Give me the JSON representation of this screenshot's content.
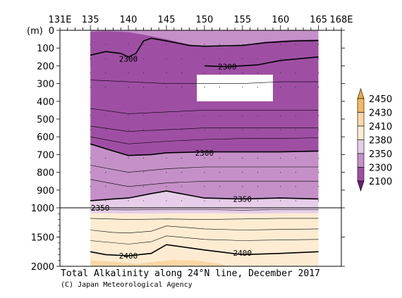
{
  "chart_data": {
    "type": "heatmap",
    "title": "Total Alkalinity along 24°N line, December 2017",
    "credit": "(C) Japan Meteorological Agency",
    "x_axis": {
      "range": [
        131,
        168
      ],
      "tick_labels": [
        {
          "value": 131,
          "label": "131E"
        },
        {
          "value": 135,
          "label": "135"
        },
        {
          "value": 140,
          "label": "140"
        },
        {
          "value": 145,
          "label": "145"
        },
        {
          "value": 150,
          "label": "150"
        },
        {
          "value": 155,
          "label": "155"
        },
        {
          "value": 160,
          "label": "160"
        },
        {
          "value": 165,
          "label": "165"
        },
        {
          "value": 168,
          "label": "168E"
        }
      ]
    },
    "y_axis": {
      "unit_label": "(m)",
      "upper_range": [
        0,
        1000
      ],
      "lower_range": [
        1000,
        2000
      ],
      "tick_labels": [
        {
          "value": 0,
          "label": "0"
        },
        {
          "value": 100,
          "label": "100"
        },
        {
          "value": 200,
          "label": "200"
        },
        {
          "value": 300,
          "label": "300"
        },
        {
          "value": 400,
          "label": "400"
        },
        {
          "value": 500,
          "label": "500"
        },
        {
          "value": 600,
          "label": "600"
        },
        {
          "value": 700,
          "label": "700"
        },
        {
          "value": 800,
          "label": "800"
        },
        {
          "value": 900,
          "label": "900"
        },
        {
          "value": 1000,
          "label": "1000"
        },
        {
          "value": 1500,
          "label": "1500"
        },
        {
          "value": 2000,
          "label": "2000"
        }
      ]
    },
    "colorbar": {
      "levels": [
        {
          "label": "2100",
          "color": "#6e1a78"
        },
        {
          "label": "2300",
          "color": "#9e4fa3"
        },
        {
          "label": "2350",
          "color": "#c590c8"
        },
        {
          "label": "2380",
          "color": "#e6cde8"
        },
        {
          "label": "2410",
          "color": "#fdecd2"
        },
        {
          "label": "2430",
          "color": "#fad7a4"
        },
        {
          "label": "2450",
          "color": "#f6b860"
        }
      ],
      "top_color": "#f0a840",
      "bottom_color": "#6e1a78"
    },
    "bands": [
      {
        "value_class": "2300-2350",
        "color": "#c590c8",
        "top": [
          [
            135,
            0
          ],
          [
            140,
            0
          ],
          [
            145,
            0
          ],
          [
            150,
            0
          ],
          [
            155,
            0
          ],
          [
            160,
            0
          ],
          [
            165,
            0
          ]
        ],
        "bottom": [
          [
            135,
            200
          ],
          [
            140,
            200
          ],
          [
            145,
            200
          ],
          [
            150,
            200
          ],
          [
            155,
            200
          ],
          [
            160,
            200
          ],
          [
            165,
            200
          ]
        ]
      },
      {
        "value_class": "2100-2300",
        "color": "#9e4fa3",
        "top": [
          [
            135,
            8
          ],
          [
            137,
            5
          ],
          [
            140,
            10
          ],
          [
            142,
            25
          ],
          [
            145,
            50
          ],
          [
            148,
            80
          ],
          [
            150,
            92
          ],
          [
            153,
            92
          ],
          [
            155,
            86
          ],
          [
            158,
            65
          ],
          [
            161,
            55
          ],
          [
            165,
            52
          ]
        ],
        "bottom": [
          [
            135,
            640
          ],
          [
            138,
            680
          ],
          [
            140,
            705
          ],
          [
            143,
            700
          ],
          [
            145,
            690
          ],
          [
            150,
            685
          ],
          [
            155,
            685
          ],
          [
            160,
            685
          ],
          [
            165,
            680
          ]
        ]
      },
      {
        "value_class": "2300-2350",
        "color": "#c590c8",
        "top": [
          [
            135,
            640
          ],
          [
            138,
            680
          ],
          [
            140,
            705
          ],
          [
            143,
            700
          ],
          [
            145,
            690
          ],
          [
            150,
            685
          ],
          [
            155,
            685
          ],
          [
            160,
            685
          ],
          [
            165,
            680
          ]
        ],
        "bottom": [
          [
            135,
            960
          ],
          [
            138,
            950
          ],
          [
            140,
            945
          ],
          [
            143,
            920
          ],
          [
            145,
            905
          ],
          [
            150,
            945
          ],
          [
            155,
            950
          ],
          [
            160,
            945
          ],
          [
            165,
            950
          ]
        ]
      },
      {
        "value_class": "2350-2380",
        "color": "#e6cde8",
        "top": [
          [
            135,
            960
          ],
          [
            138,
            950
          ],
          [
            140,
            945
          ],
          [
            143,
            920
          ],
          [
            145,
            905
          ],
          [
            150,
            945
          ],
          [
            155,
            950
          ],
          [
            160,
            945
          ],
          [
            165,
            950
          ]
        ],
        "bottom": [
          [
            135,
            1090
          ],
          [
            140,
            1100
          ],
          [
            145,
            1095
          ],
          [
            150,
            1090
          ],
          [
            155,
            1100
          ],
          [
            160,
            1095
          ],
          [
            165,
            1090
          ]
        ]
      },
      {
        "value_class": "2380-2410",
        "color": "#fdecd2",
        "top": [
          [
            135,
            1090
          ],
          [
            140,
            1100
          ],
          [
            145,
            1095
          ],
          [
            150,
            1090
          ],
          [
            155,
            1100
          ],
          [
            160,
            1095
          ],
          [
            165,
            1090
          ]
        ],
        "bottom": [
          [
            135,
            2000
          ],
          [
            140,
            2000
          ],
          [
            145,
            2000
          ],
          [
            150,
            2000
          ],
          [
            155,
            2000
          ],
          [
            160,
            2000
          ],
          [
            165,
            2000
          ]
        ]
      },
      {
        "value_class": "2410-2430",
        "color": "#fad7a4",
        "top": [
          [
            135,
            1900
          ],
          [
            138,
            1920
          ],
          [
            141,
            1960
          ],
          [
            143,
            1930
          ],
          [
            146,
            1890
          ],
          [
            149,
            1900
          ],
          [
            152,
            1960
          ],
          [
            153,
            2000
          ]
        ],
        "bottom": [
          [
            135,
            2000
          ],
          [
            153,
            2000
          ]
        ]
      }
    ],
    "contour_lines": [
      {
        "value": "2300",
        "bold": true,
        "label_at": [
          140.0,
          160
        ],
        "points": [
          [
            135,
            140
          ],
          [
            137,
            120
          ],
          [
            139,
            130
          ],
          [
            140,
            150
          ],
          [
            141,
            130
          ],
          [
            142,
            60
          ],
          [
            143,
            45
          ],
          [
            145,
            60
          ],
          [
            148,
            85
          ],
          [
            150,
            90
          ],
          [
            155,
            85
          ],
          [
            158,
            70
          ],
          [
            162,
            60
          ],
          [
            165,
            58
          ]
        ]
      },
      {
        "value": "2300",
        "bold": true,
        "label_at": [
          153.0,
          205
        ],
        "points": [
          [
            150,
            200
          ],
          [
            153,
            205
          ],
          [
            157,
            195
          ],
          [
            160,
            170
          ],
          [
            165,
            150
          ]
        ]
      },
      {
        "value": "2300",
        "bold": true,
        "label_at": [
          150.0,
          690
        ],
        "points": [
          [
            135,
            640
          ],
          [
            138,
            680
          ],
          [
            140,
            705
          ],
          [
            143,
            700
          ],
          [
            145,
            690
          ],
          [
            150,
            685
          ],
          [
            155,
            685
          ],
          [
            160,
            685
          ],
          [
            165,
            680
          ]
        ]
      },
      {
        "value": "2350",
        "bold": true,
        "label_at": [
          136.3,
          1000
        ],
        "points": [
          [
            135,
            960
          ],
          [
            138,
            950
          ],
          [
            140,
            945
          ],
          [
            143,
            920
          ],
          [
            145,
            905
          ],
          [
            150,
            945
          ],
          [
            155,
            950
          ],
          [
            160,
            945
          ],
          [
            165,
            950
          ]
        ]
      },
      {
        "value": "2350",
        "bold": true,
        "label_at": [
          155.0,
          950
        ],
        "points": []
      },
      {
        "value": "2400",
        "bold": true,
        "label_at": [
          140.0,
          1820
        ],
        "points": [
          [
            135,
            1750
          ],
          [
            137,
            1800
          ],
          [
            140,
            1820
          ],
          [
            143,
            1780
          ],
          [
            145,
            1630
          ],
          [
            150,
            1720
          ],
          [
            155,
            1800
          ],
          [
            160,
            1780
          ],
          [
            165,
            1750
          ]
        ]
      },
      {
        "value": "2400",
        "bold": true,
        "label_at": [
          155.0,
          1770
        ],
        "points": []
      },
      {
        "value": "",
        "bold": false,
        "points": [
          [
            135,
            280
          ],
          [
            140,
            290
          ],
          [
            145,
            300
          ],
          [
            150,
            300
          ],
          [
            155,
            300
          ],
          [
            160,
            290
          ],
          [
            165,
            290
          ]
        ]
      },
      {
        "value": "",
        "bold": false,
        "points": [
          [
            135,
            440
          ],
          [
            140,
            470
          ],
          [
            145,
            460
          ],
          [
            150,
            450
          ],
          [
            155,
            450
          ],
          [
            160,
            450
          ],
          [
            165,
            450
          ]
        ]
      },
      {
        "value": "",
        "bold": false,
        "points": [
          [
            135,
            540
          ],
          [
            140,
            570
          ],
          [
            145,
            560
          ],
          [
            150,
            550
          ],
          [
            155,
            550
          ],
          [
            160,
            550
          ],
          [
            165,
            550
          ]
        ]
      },
      {
        "value": "",
        "bold": false,
        "points": [
          [
            135,
            600
          ],
          [
            140,
            640
          ],
          [
            145,
            625
          ],
          [
            150,
            615
          ],
          [
            155,
            610
          ],
          [
            160,
            610
          ],
          [
            165,
            605
          ]
        ]
      },
      {
        "value": "",
        "bold": false,
        "points": [
          [
            135,
            760
          ],
          [
            140,
            800
          ],
          [
            145,
            780
          ],
          [
            150,
            770
          ],
          [
            155,
            770
          ],
          [
            160,
            770
          ],
          [
            165,
            770
          ]
        ]
      },
      {
        "value": "",
        "bold": false,
        "points": [
          [
            135,
            840
          ],
          [
            140,
            880
          ],
          [
            145,
            860
          ],
          [
            150,
            850
          ],
          [
            155,
            850
          ],
          [
            160,
            850
          ],
          [
            165,
            850
          ]
        ]
      },
      {
        "value": "",
        "bold": false,
        "points": [
          [
            135,
            1030
          ],
          [
            140,
            1035
          ],
          [
            145,
            1030
          ],
          [
            150,
            1030
          ],
          [
            155,
            1040
          ],
          [
            160,
            1030
          ],
          [
            165,
            1030
          ]
        ]
      },
      {
        "value": "",
        "bold": false,
        "points": [
          [
            135,
            1180
          ],
          [
            140,
            1200
          ],
          [
            145,
            1190
          ],
          [
            150,
            1200
          ],
          [
            155,
            1190
          ],
          [
            160,
            1180
          ],
          [
            165,
            1180
          ]
        ]
      },
      {
        "value": "",
        "bold": false,
        "points": [
          [
            135,
            1380
          ],
          [
            138,
            1420
          ],
          [
            140,
            1430
          ],
          [
            143,
            1400
          ],
          [
            145,
            1310
          ],
          [
            150,
            1360
          ],
          [
            155,
            1380
          ],
          [
            160,
            1370
          ],
          [
            165,
            1360
          ]
        ]
      },
      {
        "value": "",
        "bold": false,
        "points": [
          [
            135,
            1560
          ],
          [
            140,
            1620
          ],
          [
            143,
            1580
          ],
          [
            145,
            1480
          ],
          [
            150,
            1540
          ],
          [
            155,
            1560
          ],
          [
            160,
            1550
          ],
          [
            165,
            1540
          ]
        ]
      }
    ],
    "no_data_regions": [
      {
        "x": [
          131,
          135
        ],
        "y": [
          200,
          2000
        ]
      },
      {
        "x": [
          149,
          159
        ],
        "y": [
          250,
          400
        ]
      },
      {
        "x": [
          165,
          168
        ],
        "y": [
          0,
          2000
        ]
      }
    ],
    "grid": false
  }
}
